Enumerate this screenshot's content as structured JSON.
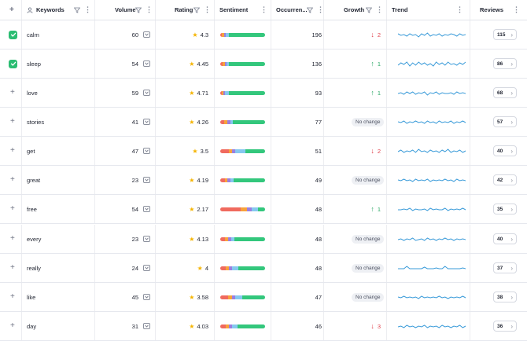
{
  "header": {
    "keywords": "Keywords",
    "volume": "Volume",
    "rating": "Rating",
    "sentiment": "Sentiment",
    "occurrences": "Occurren...",
    "growth": "Growth",
    "trend": "Trend",
    "reviews": "Reviews"
  },
  "colors": {
    "checkbox": "#2bbd72",
    "sentiment_red": "#f06a5e",
    "sentiment_orange": "#f7a23b",
    "sentiment_purple": "#9a7fe0",
    "sentiment_blue": "#86c8ef",
    "sentiment_green": "#33c77c",
    "trend_line": "#3a9bd9",
    "growth_down": "#e0424d",
    "growth_up": "#2aa865"
  },
  "rows": [
    {
      "keyword": "calm",
      "checked": true,
      "volume": "60",
      "rating": "4.3",
      "occurrences": "196",
      "growth": {
        "dir": "down",
        "value": "2"
      },
      "reviews": "115",
      "sentiment": [
        4,
        4,
        4,
        8,
        80
      ]
    },
    {
      "keyword": "sleep",
      "checked": true,
      "volume": "54",
      "rating": "4.45",
      "occurrences": "136",
      "growth": {
        "dir": "up",
        "value": "1"
      },
      "reviews": "86",
      "sentiment": [
        6,
        4,
        4,
        6,
        80
      ]
    },
    {
      "keyword": "love",
      "checked": false,
      "volume": "59",
      "rating": "4.71",
      "occurrences": "93",
      "growth": {
        "dir": "up",
        "value": "1"
      },
      "reviews": "68",
      "sentiment": [
        4,
        3,
        4,
        8,
        81
      ]
    },
    {
      "keyword": "stories",
      "checked": false,
      "volume": "41",
      "rating": "4.26",
      "occurrences": "77",
      "growth": {
        "dir": "none",
        "value": "No change"
      },
      "reviews": "57",
      "sentiment": [
        8,
        8,
        6,
        6,
        72
      ]
    },
    {
      "keyword": "get",
      "checked": false,
      "volume": "47",
      "rating": "3.5",
      "occurrences": "51",
      "growth": {
        "dir": "down",
        "value": "2"
      },
      "reviews": "40",
      "sentiment": [
        20,
        6,
        8,
        22,
        44
      ]
    },
    {
      "keyword": "great",
      "checked": false,
      "volume": "23",
      "rating": "4.19",
      "occurrences": "49",
      "growth": {
        "dir": "none",
        "value": "No change"
      },
      "reviews": "42",
      "sentiment": [
        10,
        6,
        6,
        8,
        70
      ]
    },
    {
      "keyword": "free",
      "checked": false,
      "volume": "54",
      "rating": "2.17",
      "occurrences": "48",
      "growth": {
        "dir": "up",
        "value": "1"
      },
      "reviews": "35",
      "sentiment": [
        46,
        14,
        10,
        14,
        16
      ]
    },
    {
      "keyword": "every",
      "checked": false,
      "volume": "23",
      "rating": "4.13",
      "occurrences": "48",
      "growth": {
        "dir": "none",
        "value": "No change"
      },
      "reviews": "40",
      "sentiment": [
        10,
        8,
        6,
        8,
        68
      ]
    },
    {
      "keyword": "really",
      "checked": false,
      "volume": "24",
      "rating": "4",
      "occurrences": "48",
      "growth": {
        "dir": "none",
        "value": "No change"
      },
      "reviews": "37",
      "sentiment": [
        12,
        8,
        6,
        14,
        60
      ]
    },
    {
      "keyword": "like",
      "checked": false,
      "volume": "45",
      "rating": "3.58",
      "occurrences": "47",
      "growth": {
        "dir": "none",
        "value": "No change"
      },
      "reviews": "38",
      "sentiment": [
        18,
        8,
        8,
        16,
        50
      ]
    },
    {
      "keyword": "day",
      "checked": false,
      "volume": "31",
      "rating": "4.03",
      "occurrences": "46",
      "growth": {
        "dir": "down",
        "value": "3"
      },
      "reviews": "36",
      "sentiment": [
        12,
        8,
        6,
        12,
        62
      ]
    }
  ]
}
